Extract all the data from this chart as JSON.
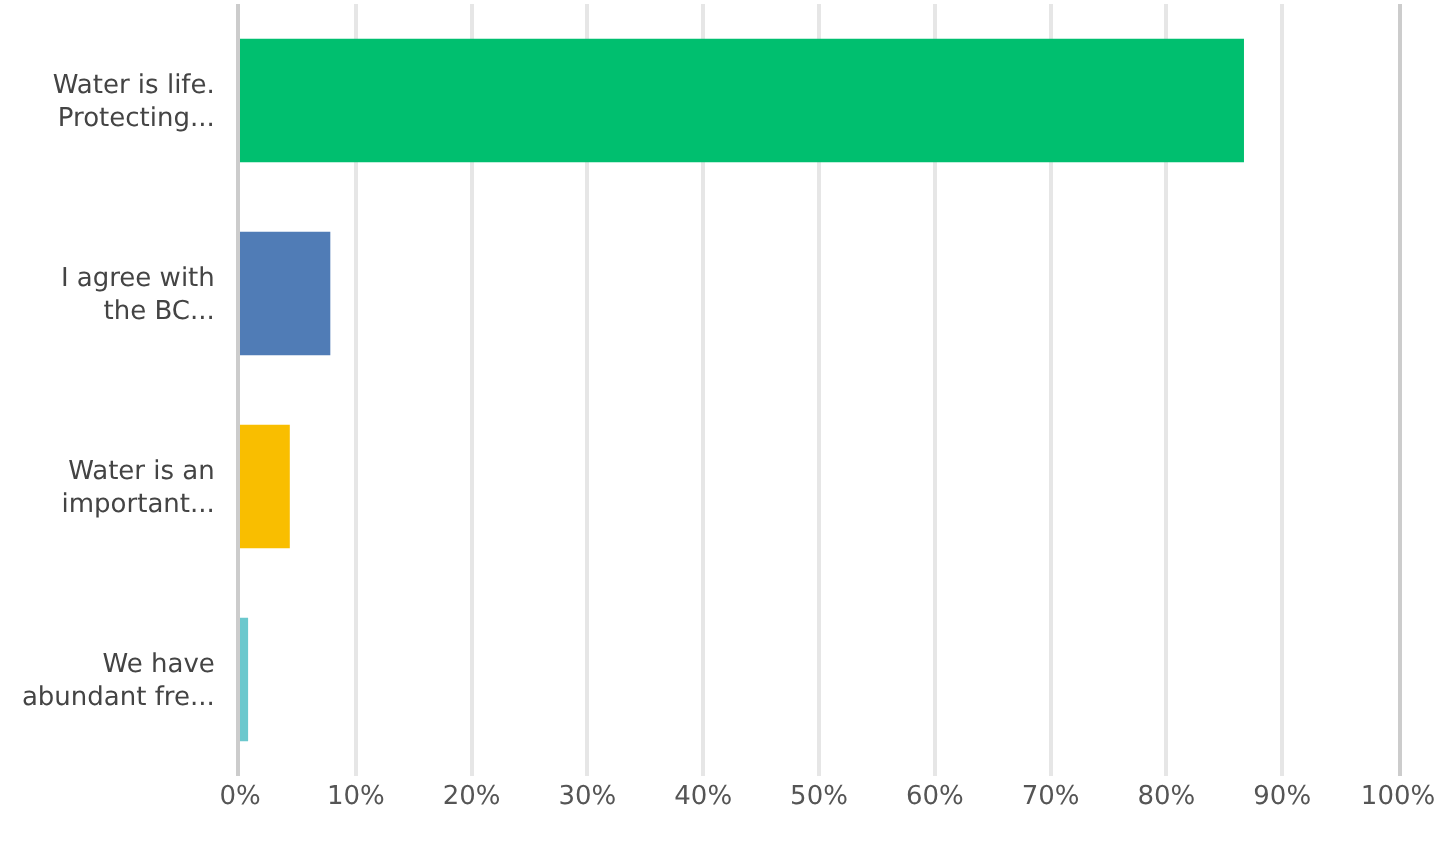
{
  "chart_data": {
    "type": "bar",
    "orientation": "horizontal",
    "categories": [
      "Water is life.\nProtecting...",
      "I agree with\nthe BC...",
      "Water is an\nimportant...",
      "We have\nabundant fre..."
    ],
    "values": [
      86.7,
      7.8,
      4.3,
      0.7
    ],
    "colors": [
      "#00bf6f",
      "#507cb6",
      "#f9be00",
      "#6bc8cd"
    ],
    "xlim": [
      0,
      100
    ],
    "xticks": [
      {
        "value": 0,
        "label": "0%"
      },
      {
        "value": 10,
        "label": "10%"
      },
      {
        "value": 20,
        "label": "20%"
      },
      {
        "value": 30,
        "label": "30%"
      },
      {
        "value": 40,
        "label": "40%"
      },
      {
        "value": 50,
        "label": "50%"
      },
      {
        "value": 60,
        "label": "60%"
      },
      {
        "value": 70,
        "label": "70%"
      },
      {
        "value": 80,
        "label": "80%"
      },
      {
        "value": 90,
        "label": "90%"
      },
      {
        "value": 100,
        "label": "100%"
      }
    ],
    "grid": "x"
  }
}
